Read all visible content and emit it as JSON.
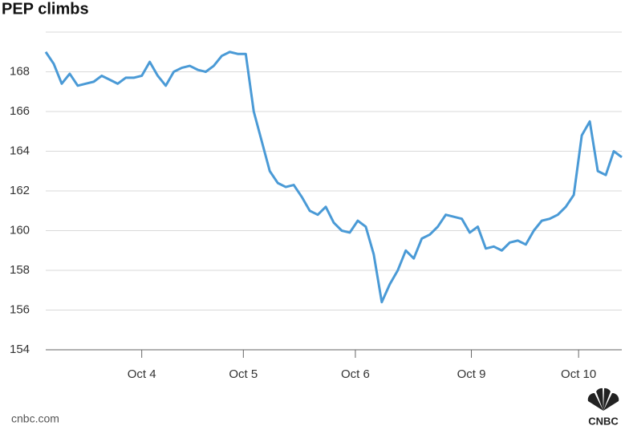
{
  "chart_data": {
    "type": "line",
    "title": "PEP climbs",
    "source": "cnbc.com",
    "logo": "CNBC",
    "series": [
      {
        "name": "PEP",
        "color": "#4a9ad6",
        "values": [
          169.0,
          168.4,
          167.4,
          167.9,
          167.3,
          167.4,
          167.5,
          167.8,
          167.6,
          167.4,
          167.7,
          167.7,
          167.8,
          168.5,
          167.8,
          167.3,
          168.0,
          168.2,
          168.3,
          168.1,
          168.0,
          168.3,
          168.8,
          169.0,
          168.9,
          168.9,
          166.0,
          164.5,
          163.0,
          162.4,
          162.2,
          162.3,
          161.7,
          161.0,
          160.8,
          161.2,
          160.4,
          160.0,
          159.9,
          160.5,
          160.2,
          158.8,
          156.4,
          157.3,
          158.0,
          159.0,
          158.6,
          159.6,
          159.8,
          160.2,
          160.8,
          160.7,
          160.6,
          159.9,
          160.2,
          159.1,
          159.2,
          159.0,
          159.4,
          159.5,
          159.3,
          160.0,
          160.5,
          160.6,
          160.8,
          161.2,
          161.8,
          164.8,
          165.5,
          163.0,
          162.8,
          164.0,
          163.7
        ]
      }
    ],
    "xlim": [
      0,
      72
    ],
    "xticks": [
      {
        "value": 12,
        "label": "Oct 4"
      },
      {
        "value": 24.7,
        "label": "Oct 5"
      },
      {
        "value": 38.7,
        "label": "Oct 6"
      },
      {
        "value": 53.2,
        "label": "Oct 9"
      },
      {
        "value": 66.6,
        "label": "Oct 10"
      }
    ],
    "ylim": [
      154,
      170
    ],
    "yticks": [
      154,
      156,
      158,
      160,
      162,
      164,
      166,
      168
    ],
    "grid": true
  }
}
